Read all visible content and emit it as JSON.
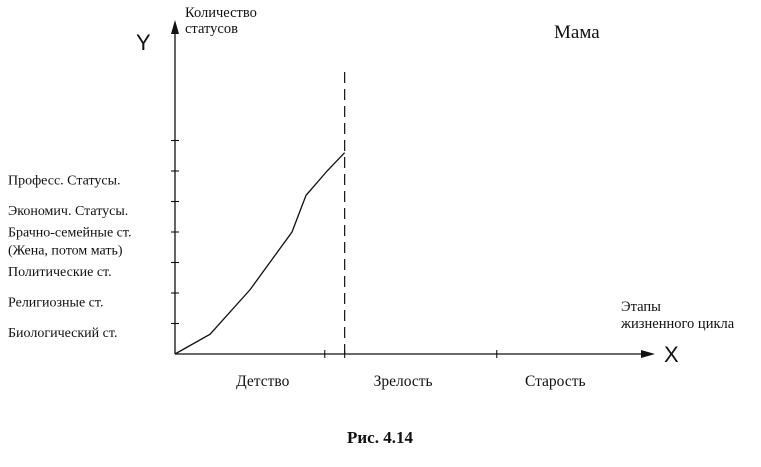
{
  "chart_data": {
    "type": "line",
    "title": "Мама",
    "caption": "Рис. 4.14",
    "y_axis_letter": "Y",
    "x_axis_letter": "X",
    "ylabel_lines": [
      "Количество",
      "статусов"
    ],
    "xlabel_lines": [
      "Этапы",
      "жизненного цикла"
    ],
    "y_levels": [
      {
        "label_lines": [
          "Биологический ст."
        ]
      },
      {
        "label_lines": [
          "Религиозные  ст."
        ]
      },
      {
        "label_lines": [
          "Политические  ст."
        ]
      },
      {
        "label_lines": [
          "Брачно-семейные ст.",
          "(Жена, потом мать)"
        ]
      },
      {
        "label_lines": [
          "Экономич.  Статусы."
        ]
      },
      {
        "label_lines": [
          "Професс. Статусы."
        ]
      }
    ],
    "x_categories": [
      "Детство",
      "Зрелость",
      "Старость"
    ],
    "ylim": [
      0,
      7
    ],
    "xlim": [
      0,
      3
    ],
    "series": [
      {
        "x": [
          0,
          0.3,
          0.64,
          1.0,
          1.12,
          1.3,
          1.45
        ],
        "y": [
          0,
          0.65,
          2.1,
          4.0,
          5.2,
          6.0,
          6.6
        ]
      }
    ],
    "divider_x": 1.45,
    "grid": false,
    "legend": "none"
  }
}
